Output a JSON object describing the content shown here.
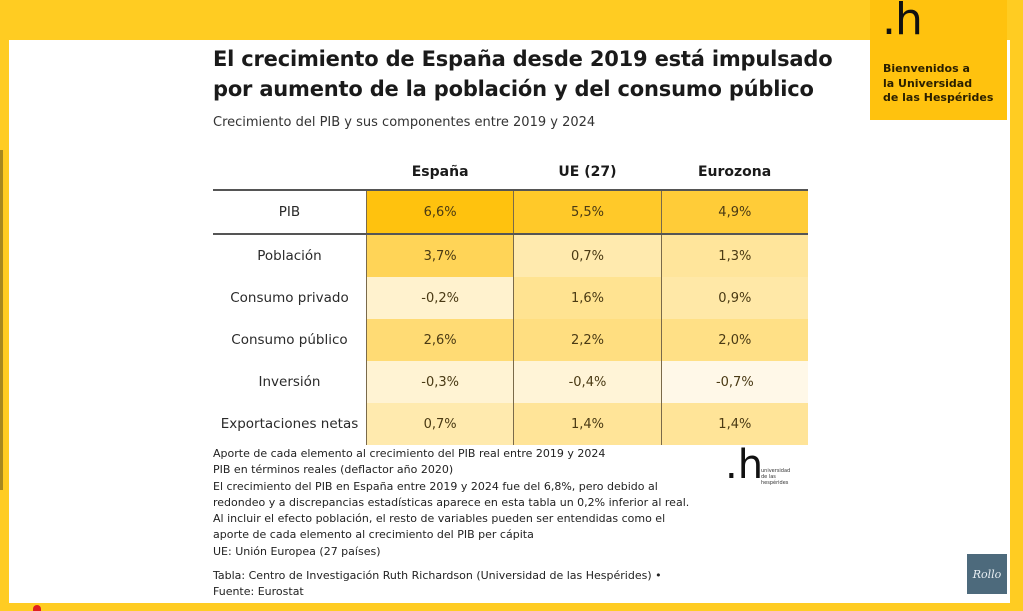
{
  "branding": {
    "logo_mark": ".h",
    "welcome_text": "Bienvenidos a\nla Universidad\nde las Hespérides",
    "footer_logo_text": "universidad\nde las\nhespérides",
    "watermark": "Rollo",
    "colors": {
      "frame_yellow": "#FFCC22",
      "card_yellow": "#FFC20E",
      "heat_max": "#FFC20E",
      "heat_min": "#FFF8E8"
    }
  },
  "slide": {
    "title": "El crecimiento de España desde 2019 está impulsado\npor aumento de la población y del consumo público",
    "subtitle": "Crecimiento del PIB y sus componentes entre 2019 y 2024"
  },
  "chart_data": {
    "type": "table",
    "title": "El crecimiento de España desde 2019 está impulsado por aumento de la población y del consumo público",
    "subtitle": "Crecimiento del PIB y sus componentes entre 2019 y 2024",
    "columns": [
      "España",
      "UE (27)",
      "Eurozona"
    ],
    "rows": [
      {
        "label": "PIB",
        "values": [
          "6,6%",
          "5,5%",
          "4,9%"
        ],
        "numeric": [
          6.6,
          5.5,
          4.9
        ]
      },
      {
        "label": "Población",
        "values": [
          "3,7%",
          "0,7%",
          "1,3%"
        ],
        "numeric": [
          3.7,
          0.7,
          1.3
        ]
      },
      {
        "label": "Consumo privado",
        "values": [
          "-0,2%",
          "1,6%",
          "0,9%"
        ],
        "numeric": [
          -0.2,
          1.6,
          0.9
        ]
      },
      {
        "label": "Consumo público",
        "values": [
          "2,6%",
          "2,2%",
          "2,0%"
        ],
        "numeric": [
          2.6,
          2.2,
          2.0
        ]
      },
      {
        "label": "Inversión",
        "values": [
          "-0,3%",
          "-0,4%",
          "-0,7%"
        ],
        "numeric": [
          -0.3,
          -0.4,
          -0.7
        ]
      },
      {
        "label": "Exportaciones netas",
        "values": [
          "0,7%",
          "1,4%",
          "1,4%"
        ],
        "numeric": [
          0.7,
          1.4,
          1.4
        ]
      }
    ]
  },
  "notes": [
    "Aporte de cada elemento al crecimiento del PIB real entre 2019 y 2024",
    "PIB en términos reales (deflactor año 2020)",
    "El crecimiento del PIB en España entre 2019 y 2024 fue del 6,8%, pero debido al",
    "redondeo y a discrepancias estadísticas aparece en esta tabla un 0,2% inferior al real.",
    "Al incluir el efecto población, el resto de variables pueden ser entendidas como el",
    "aporte de cada elemento al crecimiento del PIB per cápita",
    "UE: Unión Europea (27 países)"
  ],
  "credits": {
    "table": "Tabla: Centro de Investigación Ruth Richardson (Universidad de las Hespérides) •",
    "source": "Fuente: Eurostat"
  }
}
